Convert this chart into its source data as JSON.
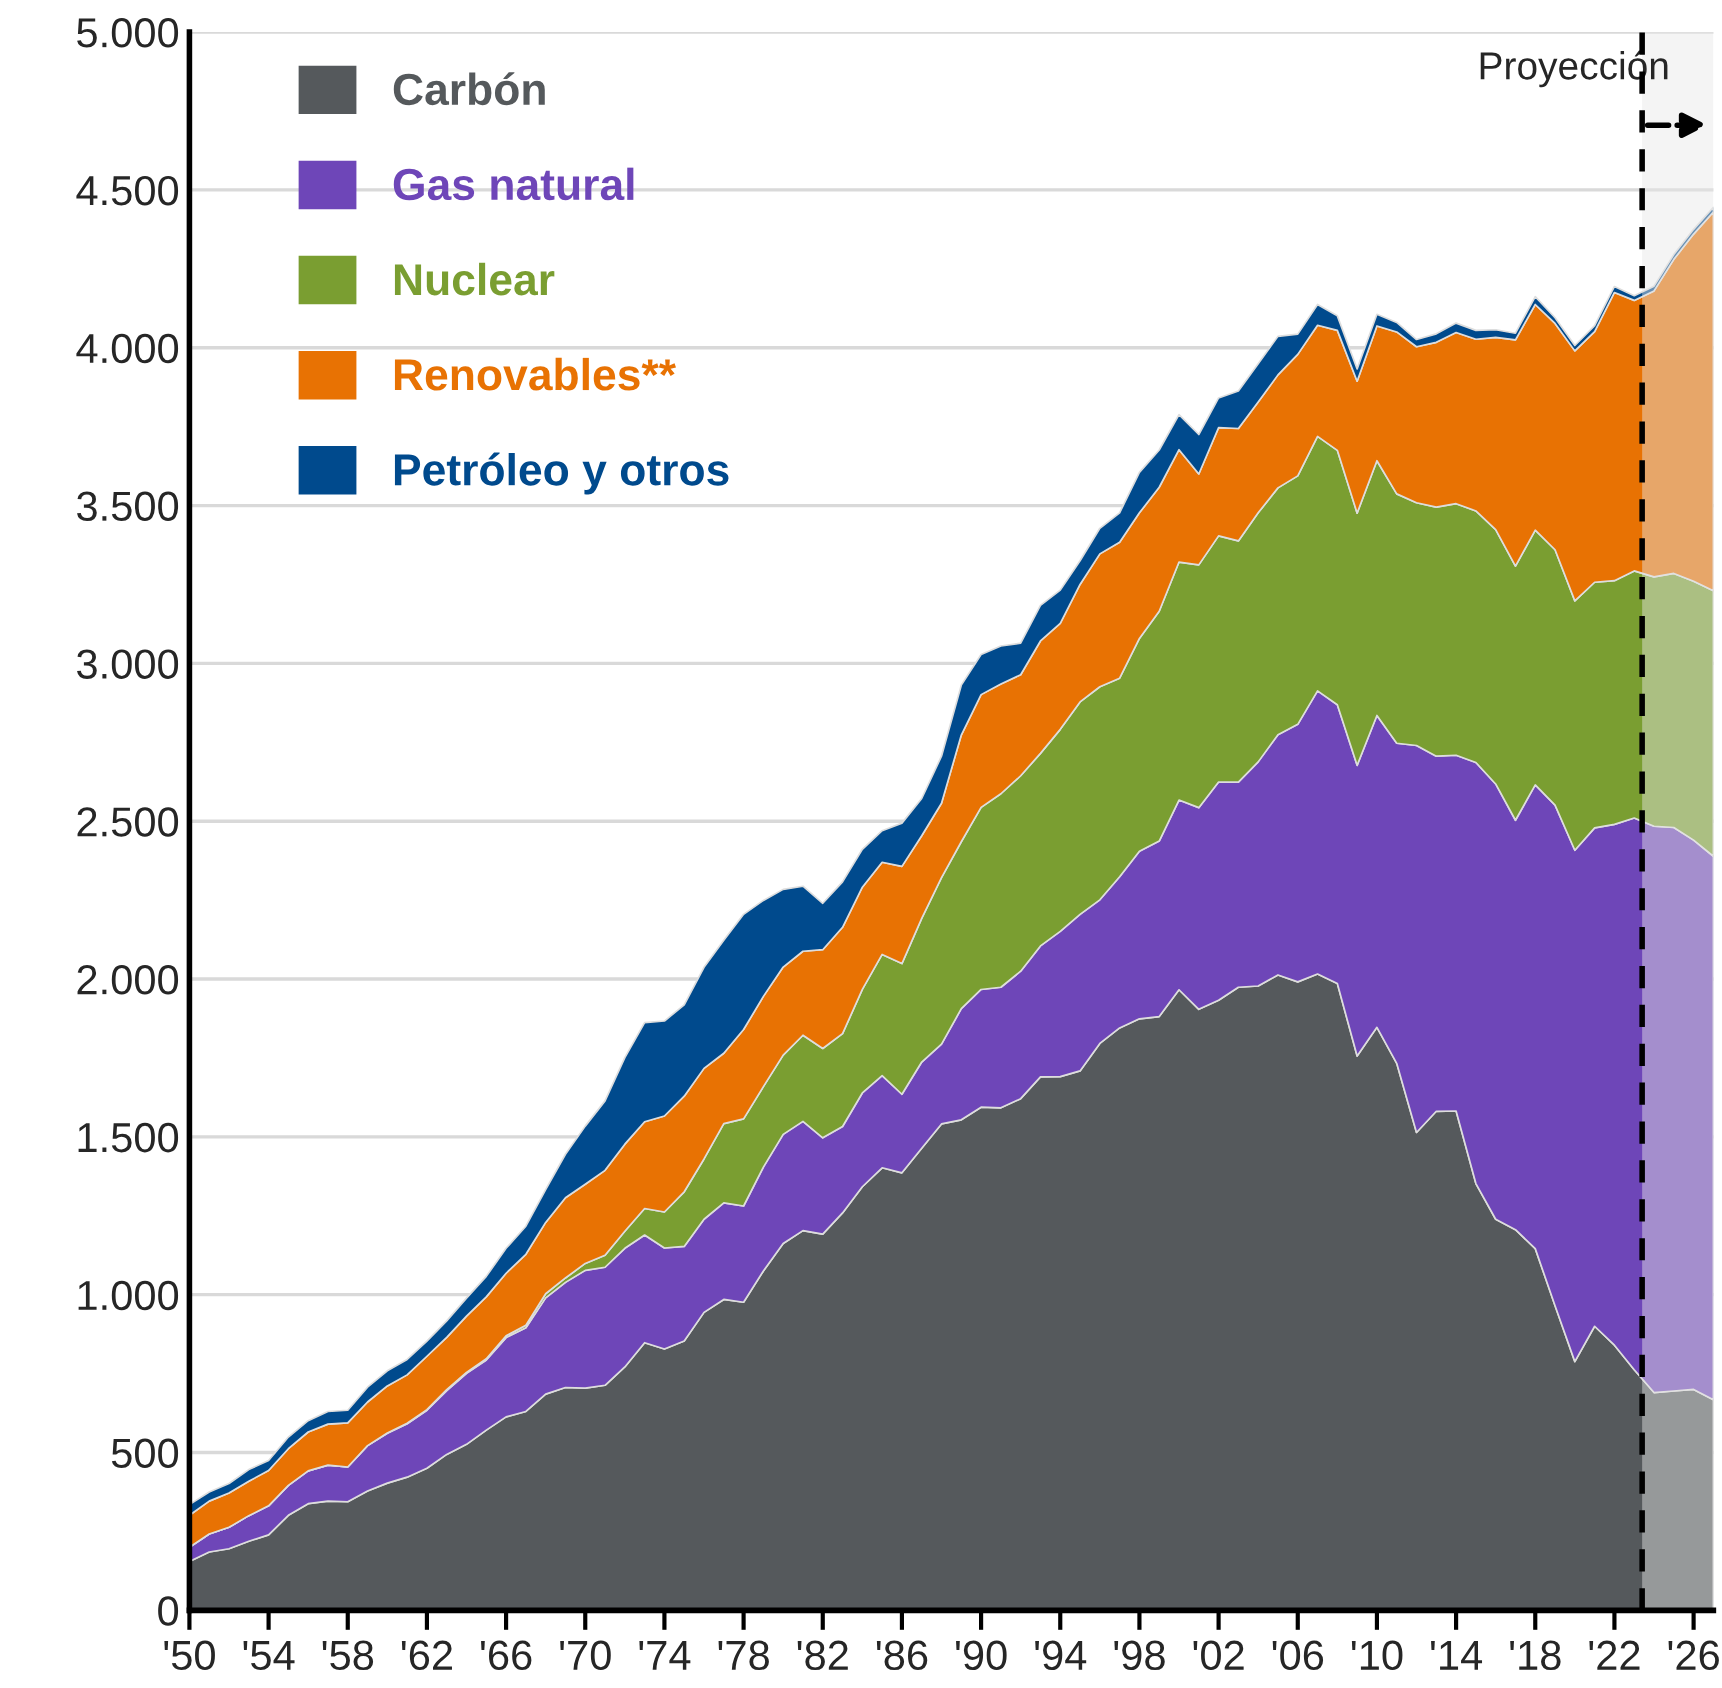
{
  "chart_data": {
    "type": "area",
    "stacked": true,
    "x": [
      1950,
      1951,
      1952,
      1953,
      1954,
      1955,
      1956,
      1957,
      1958,
      1959,
      1960,
      1961,
      1962,
      1963,
      1964,
      1965,
      1966,
      1967,
      1968,
      1969,
      1970,
      1971,
      1972,
      1973,
      1974,
      1975,
      1976,
      1977,
      1978,
      1979,
      1980,
      1981,
      1982,
      1983,
      1984,
      1985,
      1986,
      1987,
      1988,
      1989,
      1990,
      1991,
      1992,
      1993,
      1994,
      1995,
      1996,
      1997,
      1998,
      1999,
      2000,
      2001,
      2002,
      2003,
      2004,
      2005,
      2006,
      2007,
      2008,
      2009,
      2010,
      2011,
      2012,
      2013,
      2014,
      2015,
      2016,
      2017,
      2018,
      2019,
      2020,
      2021,
      2022,
      2023,
      2024,
      2025,
      2026,
      2027
    ],
    "series": [
      {
        "name": "Carbón",
        "color": "#55595c",
        "values": [
          155,
          185,
          195,
          219,
          239,
          301,
          338,
          346,
          344,
          378,
          403,
          422,
          450,
          494,
          526,
          571,
          613,
          630,
          685,
          706,
          704,
          713,
          771,
          848,
          828,
          853,
          944,
          985,
          976,
          1075,
          1162,
          1203,
          1192,
          1259,
          1342,
          1402,
          1386,
          1464,
          1541,
          1554,
          1594,
          1592,
          1621,
          1690,
          1691,
          1709,
          1796,
          1845,
          1874,
          1881,
          1966,
          1904,
          1933,
          1974,
          1978,
          2013,
          1991,
          2016,
          1986,
          1756,
          1847,
          1733,
          1514,
          1581,
          1582,
          1352,
          1239,
          1206,
          1146,
          965,
          788,
          900,
          840,
          762,
          690,
          695,
          700,
          667
        ]
      },
      {
        "name": "Gas natural",
        "color": "#6e46b8",
        "values": [
          45,
          57,
          68,
          81,
          92,
          95,
          104,
          114,
          110,
          144,
          158,
          169,
          184,
          202,
          225,
          222,
          251,
          265,
          305,
          333,
          373,
          374,
          376,
          341,
          320,
          300,
          295,
          306,
          305,
          329,
          346,
          346,
          305,
          274,
          297,
          292,
          249,
          273,
          253,
          352,
          373,
          382,
          404,
          415,
          460,
          496,
          455,
          479,
          531,
          556,
          601,
          639,
          691,
          650,
          710,
          761,
          816,
          897,
          883,
          921,
          988,
          1014,
          1226,
          1125,
          1127,
          1334,
          1379,
          1297,
          1469,
          1586,
          1620,
          1579,
          1650,
          1748,
          1794,
          1785,
          1740,
          1722
        ]
      },
      {
        "name": "Nuclear",
        "color": "#7a9e31",
        "values": [
          0,
          0,
          0,
          0,
          0,
          0,
          0,
          0,
          0,
          0,
          1,
          2,
          2,
          3,
          3,
          4,
          6,
          8,
          13,
          14,
          22,
          38,
          54,
          84,
          114,
          173,
          191,
          251,
          276,
          255,
          251,
          273,
          283,
          294,
          328,
          384,
          414,
          455,
          527,
          529,
          577,
          613,
          619,
          610,
          640,
          673,
          675,
          629,
          674,
          728,
          754,
          769,
          780,
          764,
          789,
          782,
          787,
          806,
          806,
          799,
          807,
          790,
          769,
          789,
          797,
          797,
          806,
          805,
          807,
          809,
          790,
          778,
          772,
          783,
          790,
          805,
          820,
          841
        ]
      },
      {
        "name": "Renovables**",
        "color": "#e87203",
        "values": [
          101,
          104,
          109,
          109,
          112,
          116,
          123,
          130,
          140,
          138,
          149,
          153,
          169,
          166,
          178,
          196,
          198,
          225,
          226,
          254,
          251,
          269,
          276,
          275,
          304,
          303,
          287,
          223,
          283,
          286,
          279,
          266,
          313,
          337,
          324,
          292,
          308,
          262,
          236,
          338,
          357,
          348,
          320,
          356,
          336,
          372,
          421,
          431,
          398,
          393,
          356,
          288,
          343,
          356,
          351,
          358,
          385,
          352,
          380,
          418,
          427,
          513,
          494,
          522,
          542,
          544,
          609,
          717,
          715,
          717,
          792,
          794,
          913,
          857,
          906,
          995,
          1100,
          1200
        ]
      },
      {
        "name": "Petróleo y otros",
        "color": "#004a8d",
        "values": [
          34,
          29,
          30,
          37,
          32,
          37,
          36,
          40,
          40,
          47,
          48,
          49,
          48,
          52,
          57,
          65,
          79,
          89,
          104,
          138,
          184,
          220,
          274,
          314,
          301,
          289,
          320,
          358,
          365,
          304,
          246,
          206,
          147,
          144,
          120,
          100,
          137,
          118,
          149,
          158,
          127,
          120,
          100,
          113,
          105,
          75,
          81,
          93,
          128,
          118,
          111,
          125,
          94,
          119,
          121,
          122,
          64,
          66,
          46,
          39,
          37,
          30,
          23,
          27,
          30,
          28,
          24,
          21,
          25,
          18,
          17,
          19,
          19,
          15,
          15,
          15,
          15,
          15
        ]
      }
    ],
    "xlim": [
      1950,
      2027
    ],
    "xticks": [
      {
        "value": 1950,
        "label": "'50"
      },
      {
        "value": 1954,
        "label": "'54"
      },
      {
        "value": 1958,
        "label": "'58"
      },
      {
        "value": 1962,
        "label": "'62"
      },
      {
        "value": 1966,
        "label": "'66"
      },
      {
        "value": 1970,
        "label": "'70"
      },
      {
        "value": 1974,
        "label": "'74"
      },
      {
        "value": 1978,
        "label": "'78"
      },
      {
        "value": 1982,
        "label": "'82"
      },
      {
        "value": 1986,
        "label": "'86"
      },
      {
        "value": 1990,
        "label": "'90"
      },
      {
        "value": 1994,
        "label": "'94"
      },
      {
        "value": 1998,
        "label": "'98"
      },
      {
        "value": 2002,
        "label": "'02"
      },
      {
        "value": 2006,
        "label": "'06"
      },
      {
        "value": 2010,
        "label": "'10"
      },
      {
        "value": 2014,
        "label": "'14"
      },
      {
        "value": 2018,
        "label": "'18"
      },
      {
        "value": 2022,
        "label": "'22"
      },
      {
        "value": 2026,
        "label": "'26"
      }
    ],
    "ylim": [
      0,
      5000
    ],
    "yticks": [
      {
        "value": 0,
        "label": "0"
      },
      {
        "value": 500,
        "label": "500"
      },
      {
        "value": 1000,
        "label": "1.000"
      },
      {
        "value": 1500,
        "label": "1.500"
      },
      {
        "value": 2000,
        "label": "2.000"
      },
      {
        "value": 2500,
        "label": "2.500"
      },
      {
        "value": 3000,
        "label": "3.000"
      },
      {
        "value": 3500,
        "label": "3.500"
      },
      {
        "value": 4000,
        "label": "4.000"
      },
      {
        "value": 4500,
        "label": "4.500"
      },
      {
        "value": 5000,
        "label": "5.000"
      }
    ],
    "grid": "y",
    "legend": "top left",
    "ref_lines": [
      {
        "axis": "x",
        "value": 2023.4,
        "label": "Proyección",
        "line_style": "dashed",
        "color": "#000000"
      }
    ],
    "bands": [
      {
        "axis": "x",
        "from": 2023.4,
        "to": 2027,
        "color": "#e6e6e6"
      }
    ]
  }
}
